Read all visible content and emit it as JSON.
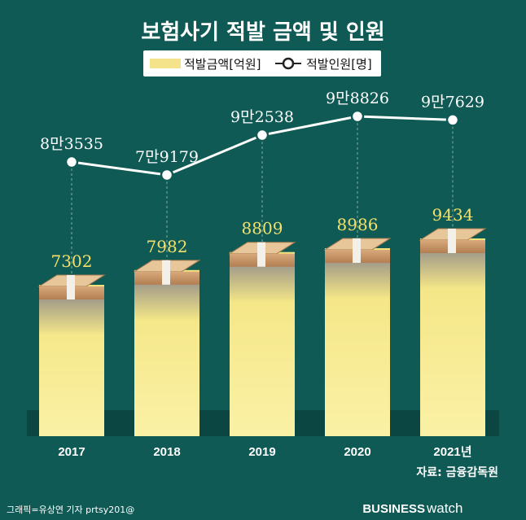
{
  "chart_data": {
    "type": "bar",
    "title": "보험사기 적발 금액 및 인원",
    "categories": [
      "2017",
      "2018",
      "2019",
      "2020",
      "2021년"
    ],
    "series": [
      {
        "name": "적발금액[억원]",
        "type": "bar",
        "values": [
          7302,
          7982,
          8809,
          8986,
          9434
        ],
        "labels": [
          "7302",
          "7982",
          "8809",
          "8986",
          "9434"
        ],
        "color": "#f6e890"
      },
      {
        "name": "적발인원[명]",
        "type": "line",
        "values": [
          83535,
          79179,
          92538,
          98826,
          97629
        ],
        "labels": [
          "8만3535",
          "7만9179",
          "9만2538",
          "9만8826",
          "9만7629"
        ],
        "color": "#ffffff"
      }
    ],
    "legend": "top-center",
    "grid": false
  },
  "source": "자료: 금융감독원",
  "credit": "그래픽=유상연 기자 prtsy201@",
  "brand": {
    "part1": "BUSINESS",
    "part2": "watch"
  },
  "colors": {
    "background": "#0f5a55",
    "bar": "#f6e890",
    "line": "#ffffff",
    "legend_bg": "#ffffff"
  }
}
